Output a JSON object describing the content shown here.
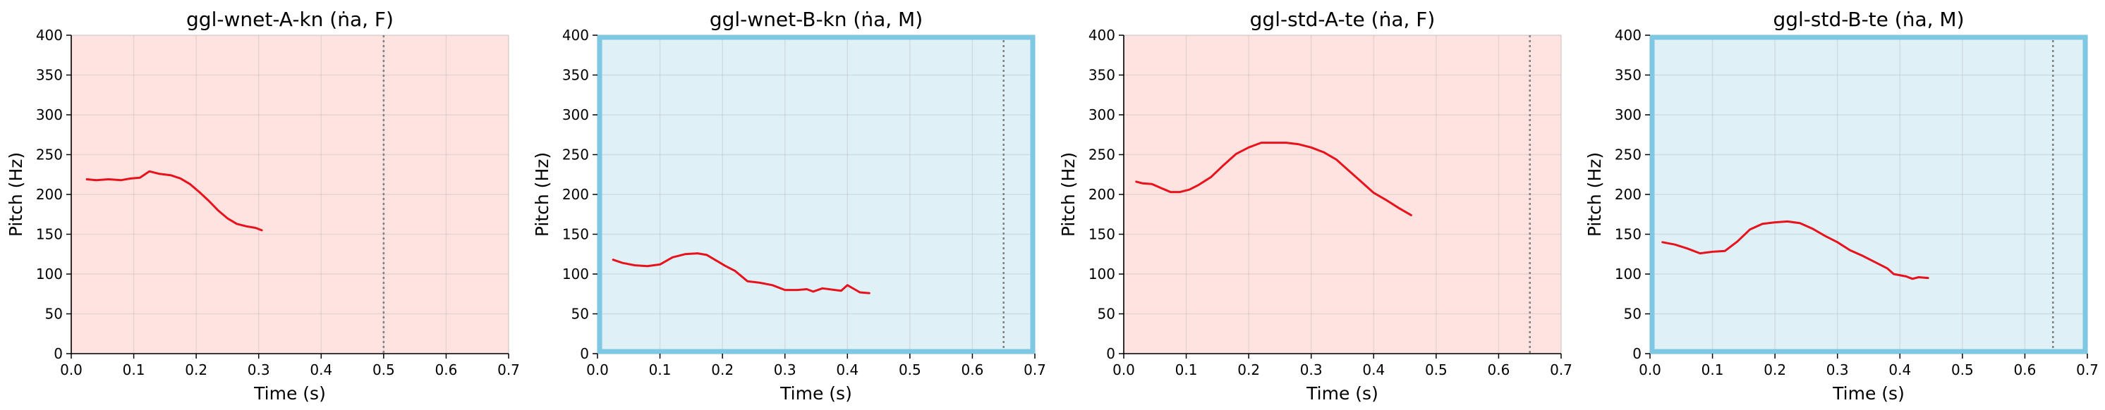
{
  "chart_data": [
    {
      "type": "line",
      "title": "ggl-wnet-A-kn (ṅa, F)",
      "xlabel": "Time (s)",
      "ylabel": "Pitch (Hz)",
      "xlim": [
        0,
        0.7
      ],
      "ylim": [
        0,
        400
      ],
      "xticks": [
        "0.0",
        "0.1",
        "0.2",
        "0.3",
        "0.4",
        "0.5",
        "0.6",
        "0.7"
      ],
      "yticks": [
        "0",
        "50",
        "100",
        "150",
        "200",
        "250",
        "300",
        "350",
        "400"
      ],
      "background": "#ffe3e1",
      "border": "",
      "grid": true,
      "vline": 0.5,
      "series": [
        {
          "color": "#e8121c",
          "x": [
            0.025,
            0.04,
            0.06,
            0.08,
            0.095,
            0.11,
            0.125,
            0.14,
            0.16,
            0.175,
            0.19,
            0.205,
            0.22,
            0.235,
            0.25,
            0.265,
            0.28,
            0.295,
            0.305
          ],
          "y": [
            219,
            218,
            219,
            218,
            220,
            221,
            229,
            226,
            224,
            220,
            213,
            203,
            192,
            180,
            170,
            163,
            160,
            158,
            155
          ]
        }
      ]
    },
    {
      "type": "line",
      "title": "ggl-wnet-B-kn (ṅa, M)",
      "xlabel": "Time (s)",
      "ylabel": "Pitch (Hz)",
      "xlim": [
        0,
        0.7
      ],
      "ylim": [
        0,
        400
      ],
      "xticks": [
        "0.0",
        "0.1",
        "0.2",
        "0.3",
        "0.4",
        "0.5",
        "0.6",
        "0.7"
      ],
      "yticks": [
        "0",
        "50",
        "100",
        "150",
        "200",
        "250",
        "300",
        "350",
        "400"
      ],
      "background": "#dff0f7",
      "border": "#7ec8e3",
      "grid": true,
      "vline": 0.65,
      "series": [
        {
          "color": "#e8121c",
          "x": [
            0.025,
            0.04,
            0.06,
            0.08,
            0.1,
            0.12,
            0.14,
            0.16,
            0.175,
            0.19,
            0.205,
            0.22,
            0.24,
            0.26,
            0.28,
            0.3,
            0.32,
            0.335,
            0.345,
            0.36,
            0.38,
            0.39,
            0.4,
            0.42,
            0.435
          ],
          "y": [
            118,
            114,
            111,
            110,
            112,
            121,
            125,
            126,
            124,
            117,
            110,
            104,
            91,
            89,
            86,
            80,
            80,
            81,
            78,
            82,
            80,
            79,
            86,
            77,
            76
          ]
        }
      ]
    },
    {
      "type": "line",
      "title": "ggl-std-A-te (ṅa, F)",
      "xlabel": "Time (s)",
      "ylabel": "Pitch (Hz)",
      "xlim": [
        0,
        0.7
      ],
      "ylim": [
        0,
        400
      ],
      "xticks": [
        "0.0",
        "0.1",
        "0.2",
        "0.3",
        "0.4",
        "0.5",
        "0.6",
        "0.7"
      ],
      "yticks": [
        "0",
        "50",
        "100",
        "150",
        "200",
        "250",
        "300",
        "350",
        "400"
      ],
      "background": "#ffe3e1",
      "border": "",
      "grid": true,
      "vline": 0.65,
      "series": [
        {
          "color": "#e8121c",
          "x": [
            0.02,
            0.03,
            0.045,
            0.06,
            0.075,
            0.09,
            0.105,
            0.12,
            0.14,
            0.16,
            0.18,
            0.2,
            0.22,
            0.24,
            0.26,
            0.28,
            0.3,
            0.32,
            0.34,
            0.36,
            0.38,
            0.4,
            0.42,
            0.44,
            0.46
          ],
          "y": [
            216,
            214,
            213,
            208,
            203,
            203,
            206,
            212,
            222,
            237,
            251,
            259,
            265,
            265,
            265,
            263,
            259,
            253,
            244,
            230,
            216,
            202,
            193,
            183,
            174
          ]
        }
      ]
    },
    {
      "type": "line",
      "title": "ggl-std-B-te (ṅa, M)",
      "xlabel": "Time (s)",
      "ylabel": "Pitch (Hz)",
      "xlim": [
        0,
        0.7
      ],
      "ylim": [
        0,
        400
      ],
      "xticks": [
        "0.0",
        "0.1",
        "0.2",
        "0.3",
        "0.4",
        "0.5",
        "0.6",
        "0.7"
      ],
      "yticks": [
        "0",
        "50",
        "100",
        "150",
        "200",
        "250",
        "300",
        "350",
        "400"
      ],
      "background": "#dff0f7",
      "border": "#7ec8e3",
      "grid": true,
      "vline": 0.645,
      "series": [
        {
          "color": "#e8121c",
          "x": [
            0.02,
            0.04,
            0.06,
            0.08,
            0.09,
            0.1,
            0.12,
            0.14,
            0.16,
            0.18,
            0.2,
            0.22,
            0.24,
            0.26,
            0.28,
            0.3,
            0.32,
            0.34,
            0.36,
            0.38,
            0.39,
            0.41,
            0.42,
            0.43,
            0.445
          ],
          "y": [
            140,
            137,
            132,
            126,
            127,
            128,
            129,
            141,
            156,
            163,
            165,
            166,
            164,
            157,
            148,
            140,
            130,
            123,
            115,
            107,
            100,
            97,
            94,
            96,
            95
          ]
        }
      ]
    }
  ]
}
